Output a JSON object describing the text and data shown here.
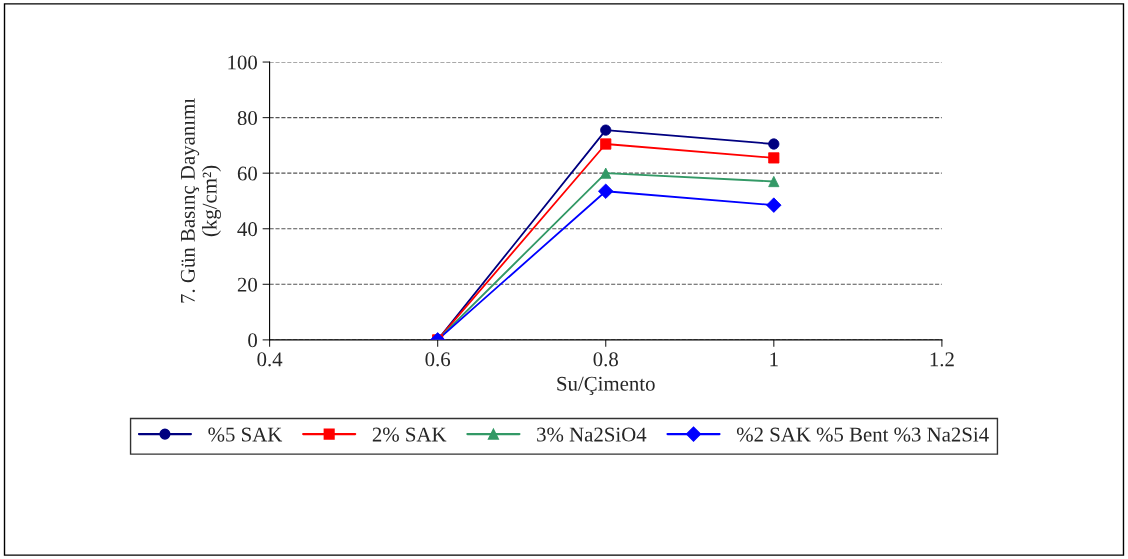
{
  "chart_data": {
    "type": "line",
    "xlabel": "Su/Çimento",
    "ylabel": "7. Gün Basınç Dayanımı\n(kg/cm²)",
    "x": [
      0.6,
      0.8,
      1.0
    ],
    "series": [
      {
        "name": "%5 SAK",
        "color": "#000080",
        "marker": "circle",
        "values": [
          0,
          75.5,
          70.5
        ]
      },
      {
        "name": "2% SAK",
        "color": "#ff0000",
        "marker": "square",
        "values": [
          0,
          70.5,
          65.5
        ]
      },
      {
        "name": "3% Na2SiO4",
        "color": "#339966",
        "marker": "triangle",
        "values": [
          0,
          60,
          57
        ]
      },
      {
        "name": "%2 SAK %5 Bent %3 Na2Si4",
        "color": "#0000ff",
        "marker": "diamond",
        "values": [
          0,
          53.5,
          48.5
        ]
      }
    ],
    "xlim": [
      0.4,
      1.2
    ],
    "xticks": [
      0.4,
      0.6,
      0.8,
      1,
      1.2
    ],
    "ylim": [
      0,
      100
    ],
    "yticks": [
      0,
      20,
      40,
      60,
      80,
      100
    ],
    "grid": "y",
    "legend": "bottom",
    "line_style": "solid"
  }
}
